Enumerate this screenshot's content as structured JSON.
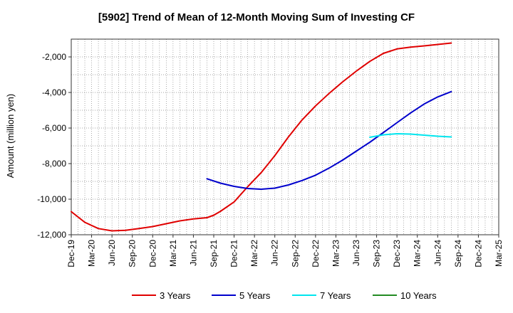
{
  "chart_data": {
    "type": "line",
    "title": "[5902]  Trend of Mean of 12-Month Moving Sum of Investing CF",
    "ylabel": "Amount (million yen)",
    "xlabel": "",
    "x_ticks": [
      "Dec-19",
      "Mar-20",
      "Jun-20",
      "Sep-20",
      "Dec-20",
      "Mar-21",
      "Jun-21",
      "Sep-21",
      "Dec-21",
      "Mar-22",
      "Jun-22",
      "Sep-22",
      "Dec-22",
      "Mar-23",
      "Jun-23",
      "Sep-23",
      "Dec-23",
      "Mar-24",
      "Jun-24",
      "Sep-24",
      "Dec-24",
      "Mar-25"
    ],
    "xlim": [
      0,
      63
    ],
    "ylim": [
      -12000,
      -1000
    ],
    "y_ticks": [
      -12000,
      -10000,
      -8000,
      -6000,
      -4000,
      -2000
    ],
    "y_tick_labels": [
      "-12,000",
      "-10,000",
      "-8,000",
      "-6,000",
      "-4,000",
      "-2,000"
    ],
    "grid": true,
    "legend_position": "bottom",
    "series": [
      {
        "name": "3 Years",
        "color": "#e00000",
        "points": [
          [
            0,
            -10700
          ],
          [
            2,
            -11300
          ],
          [
            4,
            -11650
          ],
          [
            6,
            -11780
          ],
          [
            8,
            -11750
          ],
          [
            10,
            -11650
          ],
          [
            12,
            -11540
          ],
          [
            14,
            -11380
          ],
          [
            16,
            -11220
          ],
          [
            18,
            -11110
          ],
          [
            20,
            -11040
          ],
          [
            21,
            -10900
          ],
          [
            22,
            -10680
          ],
          [
            24,
            -10150
          ],
          [
            26,
            -9300
          ],
          [
            28,
            -8500
          ],
          [
            30,
            -7550
          ],
          [
            32,
            -6500
          ],
          [
            34,
            -5550
          ],
          [
            36,
            -4750
          ],
          [
            38,
            -4050
          ],
          [
            40,
            -3400
          ],
          [
            42,
            -2800
          ],
          [
            44,
            -2250
          ],
          [
            46,
            -1800
          ],
          [
            48,
            -1550
          ],
          [
            50,
            -1450
          ],
          [
            52,
            -1380
          ],
          [
            54,
            -1300
          ],
          [
            56,
            -1220
          ]
        ]
      },
      {
        "name": "5 Years",
        "color": "#0000cc",
        "points": [
          [
            20,
            -8850
          ],
          [
            22,
            -9100
          ],
          [
            24,
            -9280
          ],
          [
            26,
            -9400
          ],
          [
            28,
            -9440
          ],
          [
            30,
            -9380
          ],
          [
            32,
            -9200
          ],
          [
            34,
            -8950
          ],
          [
            36,
            -8650
          ],
          [
            38,
            -8250
          ],
          [
            40,
            -7800
          ],
          [
            42,
            -7300
          ],
          [
            44,
            -6800
          ],
          [
            46,
            -6250
          ],
          [
            48,
            -5700
          ],
          [
            50,
            -5150
          ],
          [
            52,
            -4650
          ],
          [
            54,
            -4250
          ],
          [
            56,
            -3950
          ]
        ]
      },
      {
        "name": "7 Years",
        "color": "#00e5ee",
        "points": [
          [
            44,
            -6520
          ],
          [
            46,
            -6380
          ],
          [
            48,
            -6320
          ],
          [
            50,
            -6340
          ],
          [
            52,
            -6400
          ],
          [
            54,
            -6460
          ],
          [
            56,
            -6500
          ]
        ]
      },
      {
        "name": "10 Years",
        "color": "#228b22",
        "points": []
      }
    ]
  }
}
